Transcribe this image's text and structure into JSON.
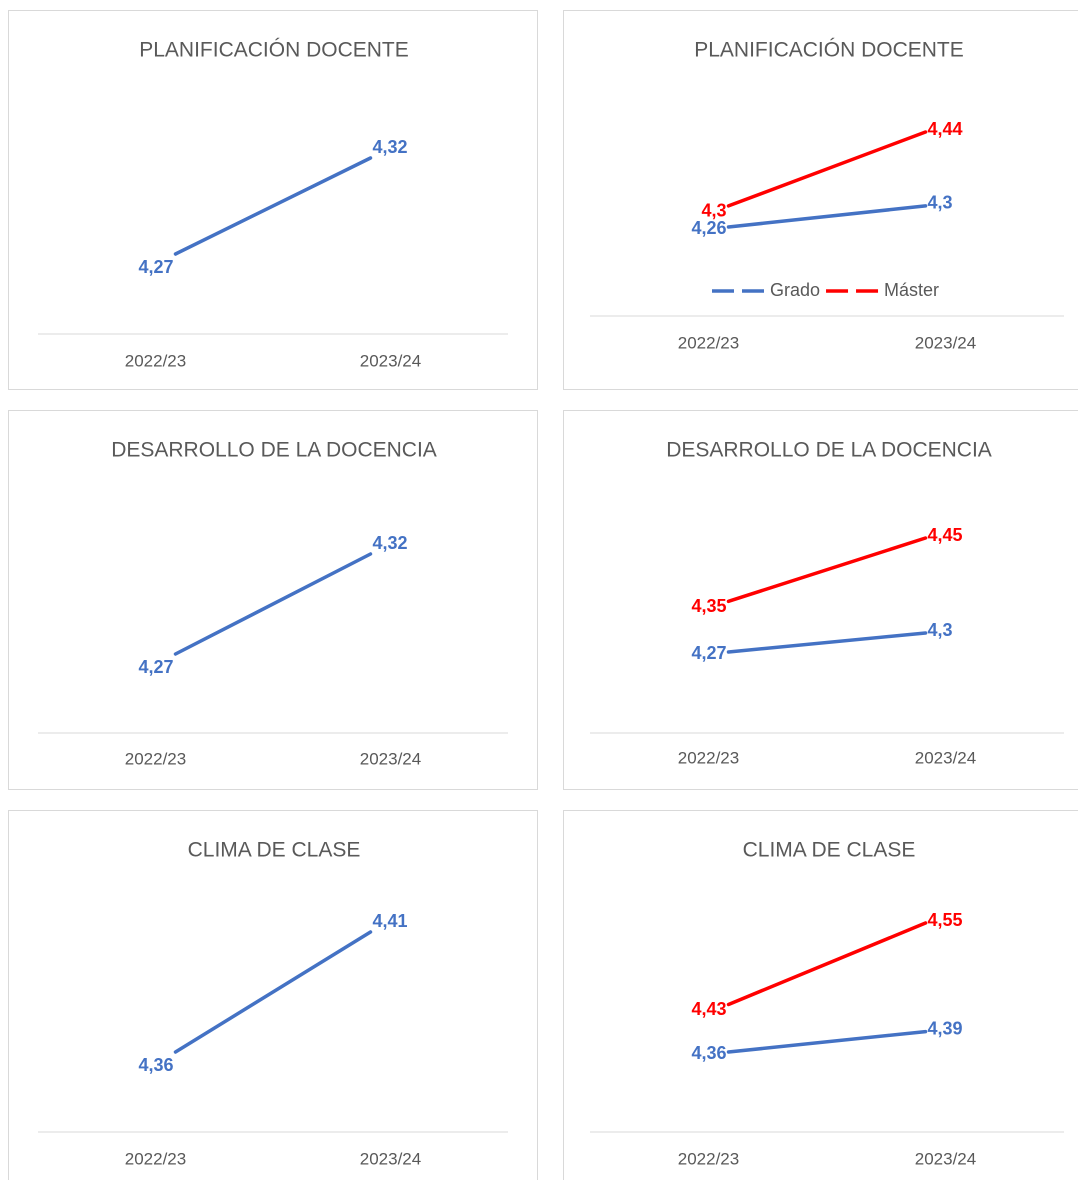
{
  "chart_data": [
    {
      "type": "line",
      "title": "PLANIFICACIÓN DOCENTE",
      "categories": [
        "2022/23",
        "2023/24"
      ],
      "values": [
        4.27,
        4.32
      ],
      "value_labels": [
        "4,27",
        "4,32"
      ],
      "color": "#4472c4"
    },
    {
      "type": "line",
      "title": "PLANIFICACIÓN DOCENTE",
      "categories": [
        "2022/23",
        "2023/24"
      ],
      "series": [
        {
          "name": "Grado",
          "color": "#4472c4",
          "values": [
            4.26,
            4.3
          ],
          "value_labels": [
            "4,26",
            "4,3"
          ]
        },
        {
          "name": "Máster",
          "color": "#ff0000",
          "values": [
            4.3,
            4.44
          ],
          "value_labels": [
            "4,3",
            "4,44"
          ]
        }
      ],
      "legend": "bottom"
    },
    {
      "type": "line",
      "title": "DESARROLLO DE LA DOCENCIA",
      "categories": [
        "2022/23",
        "2023/24"
      ],
      "values": [
        4.27,
        4.32
      ],
      "value_labels": [
        "4,27",
        "4,32"
      ],
      "color": "#4472c4"
    },
    {
      "type": "line",
      "title": "DESARROLLO DE LA DOCENCIA",
      "categories": [
        "2022/23",
        "2023/24"
      ],
      "series": [
        {
          "name": "Grado",
          "color": "#4472c4",
          "values": [
            4.27,
            4.3
          ],
          "value_labels": [
            "4,27",
            "4,3"
          ]
        },
        {
          "name": "Máster",
          "color": "#ff0000",
          "values": [
            4.35,
            4.45
          ],
          "value_labels": [
            "4,35",
            "4,45"
          ]
        }
      ]
    },
    {
      "type": "line",
      "title": "CLIMA DE CLASE",
      "categories": [
        "2022/23",
        "2023/24"
      ],
      "values": [
        4.36,
        4.41
      ],
      "value_labels": [
        "4,36",
        "4,41"
      ],
      "color": "#4472c4"
    },
    {
      "type": "line",
      "title": "CLIMA DE CLASE",
      "categories": [
        "2022/23",
        "2023/24"
      ],
      "series": [
        {
          "name": "Grado",
          "color": "#4472c4",
          "values": [
            4.36,
            4.39
          ],
          "value_labels": [
            "4,36",
            "4,39"
          ]
        },
        {
          "name": "Máster",
          "color": "#ff0000",
          "values": [
            4.43,
            4.55
          ],
          "value_labels": [
            "4,43",
            "4,55"
          ]
        }
      ]
    }
  ]
}
